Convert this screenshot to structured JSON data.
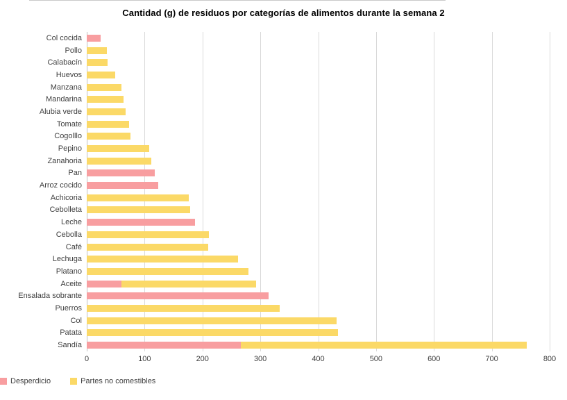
{
  "title": "Cantidad (g) de residuos por categorías de alimentos durante la semana 2",
  "chart_data": {
    "type": "bar",
    "orientation": "horizontal",
    "stacked": true,
    "title": "Cantidad (g) de residuos por categorías de alimentos durante la semana 2",
    "xlabel": "",
    "ylabel": "",
    "xlim": [
      0,
      800
    ],
    "x_ticks": [
      0,
      100,
      200,
      300,
      400,
      500,
      600,
      700,
      800
    ],
    "grid": "vertical",
    "legend_position": "bottom",
    "categories": [
      "Col cocida",
      "Pollo",
      "Calabacín",
      "Huevos",
      "Manzana",
      "Mandarina",
      "Alubia verde",
      "Tomate",
      "Cogolllo",
      "Pepino",
      "Zanahoria",
      "Pan",
      "Arroz cocido",
      "Achicoria",
      "Cebolleta",
      "Leche",
      "Cebolla",
      "Café",
      "Lechuga",
      "Platano",
      "Aceite",
      "Ensalada sobrante",
      "Puerros",
      "Col",
      "Patata",
      "Sandía"
    ],
    "series": [
      {
        "name": "Desperdicio",
        "color": "#F89EA0",
        "values": [
          24,
          0,
          0,
          0,
          0,
          0,
          0,
          0,
          0,
          0,
          0,
          117,
          123,
          0,
          0,
          187,
          0,
          0,
          0,
          0,
          60,
          314,
          0,
          0,
          0,
          266
        ]
      },
      {
        "name": "Partes no comestibles",
        "color": "#FBD967",
        "values": [
          0,
          35,
          36,
          49,
          60,
          64,
          67,
          73,
          76,
          108,
          111,
          0,
          0,
          176,
          179,
          0,
          211,
          210,
          262,
          280,
          233,
          0,
          333,
          432,
          434,
          494
        ]
      }
    ]
  },
  "colors": {
    "gridline": "#d9d9d9",
    "axis_line": "#bfbfbf",
    "label_text": "#404040"
  }
}
